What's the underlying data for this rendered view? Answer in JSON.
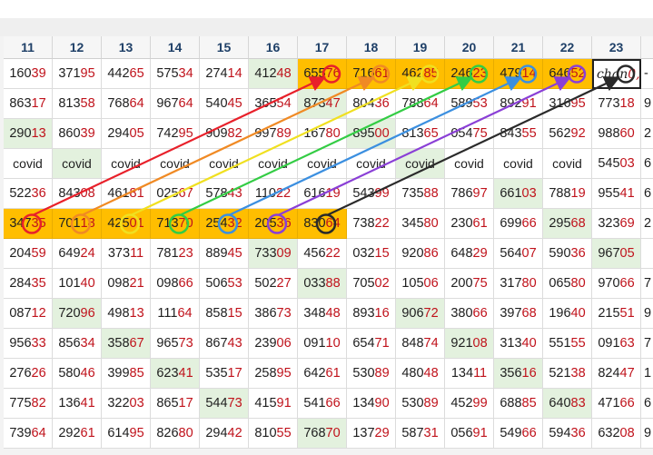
{
  "columns": [
    "11",
    "12",
    "13",
    "14",
    "15",
    "16",
    "17",
    "18",
    "19",
    "20",
    "21",
    "22",
    "23"
  ],
  "rows": [
    {
      "cells": [
        {
          "a": "160",
          "b": "39"
        },
        {
          "a": "371",
          "b": "95"
        },
        {
          "a": "442",
          "b": "65"
        },
        {
          "a": "575",
          "b": "34"
        },
        {
          "a": "274",
          "b": "14"
        },
        {
          "a": "412",
          "b": "48",
          "bg": "g"
        },
        {
          "a": "655",
          "b": "76",
          "bg": "o"
        },
        {
          "a": "716",
          "b": "61",
          "bg": "o"
        },
        {
          "a": "462",
          "b": "85",
          "bg": "o"
        },
        {
          "a": "246",
          "b": "23",
          "bg": "o"
        },
        {
          "a": "479",
          "b": "14",
          "bg": "o"
        },
        {
          "a": "646",
          "b": "52",
          "bg": "o"
        },
        {
          "a": "chan",
          "b": " 0,5",
          "sel": true
        }
      ],
      "trail": "-"
    },
    {
      "cells": [
        {
          "a": "863",
          "b": "17"
        },
        {
          "a": "813",
          "b": "58"
        },
        {
          "a": "768",
          "b": "64"
        },
        {
          "a": "967",
          "b": "64"
        },
        {
          "a": "540",
          "b": "45"
        },
        {
          "a": "365",
          "b": "54"
        },
        {
          "a": "873",
          "b": "47",
          "bg": "g"
        },
        {
          "a": "804",
          "b": "36"
        },
        {
          "a": "788",
          "b": "64"
        },
        {
          "a": "589",
          "b": "53"
        },
        {
          "a": "892",
          "b": "91"
        },
        {
          "a": "316",
          "b": "95"
        },
        {
          "a": "773",
          "b": "18"
        }
      ],
      "trail": "9"
    },
    {
      "cells": [
        {
          "a": "290",
          "b": "13",
          "bg": "g"
        },
        {
          "a": "860",
          "b": "39"
        },
        {
          "a": "294",
          "b": "05"
        },
        {
          "a": "742",
          "b": "95"
        },
        {
          "a": "909",
          "b": "82"
        },
        {
          "a": "997",
          "b": "89"
        },
        {
          "a": "167",
          "b": "80"
        },
        {
          "a": "895",
          "b": "00",
          "bg": "g"
        },
        {
          "a": "813",
          "b": "65"
        },
        {
          "a": "054",
          "b": "75"
        },
        {
          "a": "843",
          "b": "55"
        },
        {
          "a": "562",
          "b": "92"
        },
        {
          "a": "988",
          "b": "60"
        }
      ],
      "trail": "2"
    },
    {
      "cells": [
        {
          "a": "covid",
          "cv": true
        },
        {
          "a": "covid",
          "cv": true,
          "bg": "g"
        },
        {
          "a": "covid",
          "cv": true
        },
        {
          "a": "covid",
          "cv": true
        },
        {
          "a": "covid",
          "cv": true
        },
        {
          "a": "covid",
          "cv": true
        },
        {
          "a": "covid",
          "cv": true
        },
        {
          "a": "covid",
          "cv": true
        },
        {
          "a": "covid",
          "cv": true,
          "bg": "g"
        },
        {
          "a": "covid",
          "cv": true
        },
        {
          "a": "covid",
          "cv": true
        },
        {
          "a": "covid",
          "cv": true
        },
        {
          "a": "545",
          "b": "03"
        }
      ],
      "trail": "6"
    },
    {
      "cells": [
        {
          "a": "522",
          "b": "36"
        },
        {
          "a": "843",
          "b": "08"
        },
        {
          "a": "461",
          "b": "81"
        },
        {
          "a": "025",
          "b": "67"
        },
        {
          "a": "578",
          "b": "43"
        },
        {
          "a": "110",
          "b": "22"
        },
        {
          "a": "616",
          "b": "19"
        },
        {
          "a": "543",
          "b": "99"
        },
        {
          "a": "735",
          "b": "88"
        },
        {
          "a": "786",
          "b": "97"
        },
        {
          "a": "661",
          "b": "03",
          "bg": "g"
        },
        {
          "a": "788",
          "b": "19"
        },
        {
          "a": "955",
          "b": "41"
        }
      ],
      "trail": "6"
    },
    {
      "cells": [
        {
          "a": "347",
          "b": "35",
          "bg": "o"
        },
        {
          "a": "701",
          "b": "18",
          "bg": "o"
        },
        {
          "a": "425",
          "b": "01",
          "bg": "o"
        },
        {
          "a": "713",
          "b": "70",
          "bg": "o"
        },
        {
          "a": "254",
          "b": "32",
          "bg": "o"
        },
        {
          "a": "205",
          "b": "36",
          "bg": "o"
        },
        {
          "a": "830",
          "b": "64",
          "bg": "o"
        },
        {
          "a": "738",
          "b": "22"
        },
        {
          "a": "345",
          "b": "80"
        },
        {
          "a": "230",
          "b": "61"
        },
        {
          "a": "699",
          "b": "66"
        },
        {
          "a": "295",
          "b": "68",
          "bg": "g"
        },
        {
          "a": "323",
          "b": "69"
        }
      ],
      "trail": "2"
    },
    {
      "cells": [
        {
          "a": "204",
          "b": "59"
        },
        {
          "a": "649",
          "b": "24"
        },
        {
          "a": "373",
          "b": "11"
        },
        {
          "a": "781",
          "b": "23"
        },
        {
          "a": "889",
          "b": "45"
        },
        {
          "a": "733",
          "b": "09",
          "bg": "g"
        },
        {
          "a": "456",
          "b": "22"
        },
        {
          "a": "032",
          "b": "15"
        },
        {
          "a": "920",
          "b": "86"
        },
        {
          "a": "648",
          "b": "29"
        },
        {
          "a": "564",
          "b": "07"
        },
        {
          "a": "590",
          "b": "36"
        },
        {
          "a": "967",
          "b": "05",
          "bg": "g"
        }
      ],
      "trail": ""
    },
    {
      "cells": [
        {
          "a": "284",
          "b": "35"
        },
        {
          "a": "101",
          "b": "40"
        },
        {
          "a": "098",
          "b": "21"
        },
        {
          "a": "098",
          "b": "66"
        },
        {
          "a": "506",
          "b": "53"
        },
        {
          "a": "502",
          "b": "27"
        },
        {
          "a": "033",
          "b": "88",
          "bg": "g"
        },
        {
          "a": "705",
          "b": "02"
        },
        {
          "a": "105",
          "b": "06"
        },
        {
          "a": "200",
          "b": "75"
        },
        {
          "a": "317",
          "b": "80"
        },
        {
          "a": "065",
          "b": "80"
        },
        {
          "a": "970",
          "b": "66"
        }
      ],
      "trail": "7"
    },
    {
      "cells": [
        {
          "a": "087",
          "b": "12"
        },
        {
          "a": "720",
          "b": "96",
          "bg": "g"
        },
        {
          "a": "498",
          "b": "13"
        },
        {
          "a": "111",
          "b": "64"
        },
        {
          "a": "858",
          "b": "15"
        },
        {
          "a": "386",
          "b": "73"
        },
        {
          "a": "348",
          "b": "48"
        },
        {
          "a": "893",
          "b": "16"
        },
        {
          "a": "906",
          "b": "72",
          "bg": "g"
        },
        {
          "a": "380",
          "b": "66"
        },
        {
          "a": "397",
          "b": "68"
        },
        {
          "a": "196",
          "b": "40"
        },
        {
          "a": "215",
          "b": "51"
        }
      ],
      "trail": "9"
    },
    {
      "cells": [
        {
          "a": "956",
          "b": "33"
        },
        {
          "a": "856",
          "b": "34"
        },
        {
          "a": "358",
          "b": "67",
          "bg": "g"
        },
        {
          "a": "965",
          "b": "73"
        },
        {
          "a": "867",
          "b": "43"
        },
        {
          "a": "239",
          "b": "06"
        },
        {
          "a": "091",
          "b": "10"
        },
        {
          "a": "654",
          "b": "71"
        },
        {
          "a": "848",
          "b": "74"
        },
        {
          "a": "921",
          "b": "08",
          "bg": "g"
        },
        {
          "a": "313",
          "b": "40"
        },
        {
          "a": "551",
          "b": "55"
        },
        {
          "a": "091",
          "b": "63"
        }
      ],
      "trail": "7"
    },
    {
      "cells": [
        {
          "a": "276",
          "b": "26"
        },
        {
          "a": "580",
          "b": "46"
        },
        {
          "a": "399",
          "b": "85"
        },
        {
          "a": "623",
          "b": "41",
          "bg": "g"
        },
        {
          "a": "535",
          "b": "17"
        },
        {
          "a": "258",
          "b": "95"
        },
        {
          "a": "642",
          "b": "61"
        },
        {
          "a": "530",
          "b": "89"
        },
        {
          "a": "480",
          "b": "48"
        },
        {
          "a": "134",
          "b": "11"
        },
        {
          "a": "356",
          "b": "16",
          "bg": "g"
        },
        {
          "a": "521",
          "b": "38"
        },
        {
          "a": "824",
          "b": "47"
        }
      ],
      "trail": "1"
    },
    {
      "cells": [
        {
          "a": "775",
          "b": "82"
        },
        {
          "a": "136",
          "b": "41"
        },
        {
          "a": "322",
          "b": "03"
        },
        {
          "a": "865",
          "b": "17"
        },
        {
          "a": "544",
          "b": "73",
          "bg": "g"
        },
        {
          "a": "415",
          "b": "91"
        },
        {
          "a": "541",
          "b": "66"
        },
        {
          "a": "134",
          "b": "90"
        },
        {
          "a": "530",
          "b": "89"
        },
        {
          "a": "452",
          "b": "99"
        },
        {
          "a": "688",
          "b": "85"
        },
        {
          "a": "640",
          "b": "83",
          "bg": "g"
        },
        {
          "a": "471",
          "b": "66"
        }
      ],
      "trail": "6"
    },
    {
      "cells": [
        {
          "a": "739",
          "b": "64"
        },
        {
          "a": "292",
          "b": "61"
        },
        {
          "a": "614",
          "b": "95"
        },
        {
          "a": "826",
          "b": "80"
        },
        {
          "a": "294",
          "b": "42"
        },
        {
          "a": "810",
          "b": "55"
        },
        {
          "a": "768",
          "b": "70",
          "bg": "g"
        },
        {
          "a": "137",
          "b": "29"
        },
        {
          "a": "587",
          "b": "31"
        },
        {
          "a": "056",
          "b": "91"
        },
        {
          "a": "549",
          "b": "66"
        },
        {
          "a": "594",
          "b": "36"
        },
        {
          "a": "632",
          "b": "08"
        }
      ],
      "trail": "9"
    }
  ],
  "colors": {
    "highlight_orange": "#ffbe00",
    "green_cell": "#e3f1de",
    "digit_red": "#c0121b",
    "arrows": [
      "#e8202a",
      "#f08a24",
      "#f0e020",
      "#33cc44",
      "#3b8fe0",
      "#8a3fd6",
      "#2a2a2a"
    ]
  }
}
